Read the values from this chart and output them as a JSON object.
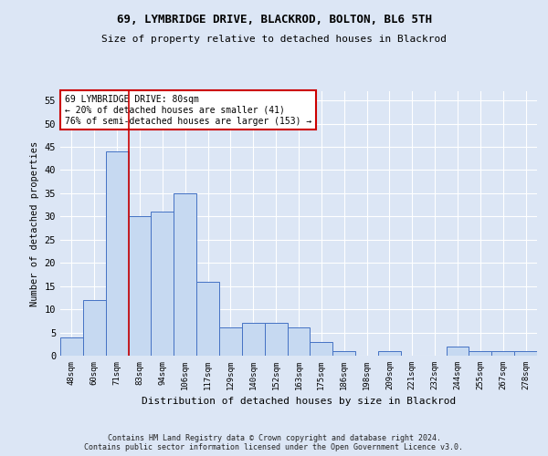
{
  "title1": "69, LYMBRIDGE DRIVE, BLACKROD, BOLTON, BL6 5TH",
  "title2": "Size of property relative to detached houses in Blackrod",
  "xlabel": "Distribution of detached houses by size in Blackrod",
  "ylabel": "Number of detached properties",
  "categories": [
    "48sqm",
    "60sqm",
    "71sqm",
    "83sqm",
    "94sqm",
    "106sqm",
    "117sqm",
    "129sqm",
    "140sqm",
    "152sqm",
    "163sqm",
    "175sqm",
    "186sqm",
    "198sqm",
    "209sqm",
    "221sqm",
    "232sqm",
    "244sqm",
    "255sqm",
    "267sqm",
    "278sqm"
  ],
  "values": [
    4,
    12,
    44,
    30,
    31,
    35,
    16,
    6,
    7,
    7,
    6,
    3,
    1,
    0,
    1,
    0,
    0,
    2,
    1,
    1,
    1
  ],
  "bar_color": "#c6d9f1",
  "bar_edge_color": "#4472c4",
  "ylim": [
    0,
    57
  ],
  "yticks": [
    0,
    5,
    10,
    15,
    20,
    25,
    30,
    35,
    40,
    45,
    50,
    55
  ],
  "red_line_x": 2.5,
  "annotation_text": "69 LYMBRIDGE DRIVE: 80sqm\n← 20% of detached houses are smaller (41)\n76% of semi-detached houses are larger (153) →",
  "annotation_box_color": "#ffffff",
  "annotation_box_edge": "#cc0000",
  "footer1": "Contains HM Land Registry data © Crown copyright and database right 2024.",
  "footer2": "Contains public sector information licensed under the Open Government Licence v3.0.",
  "bg_color": "#dce6f5",
  "plot_bg_color": "#dce6f5"
}
